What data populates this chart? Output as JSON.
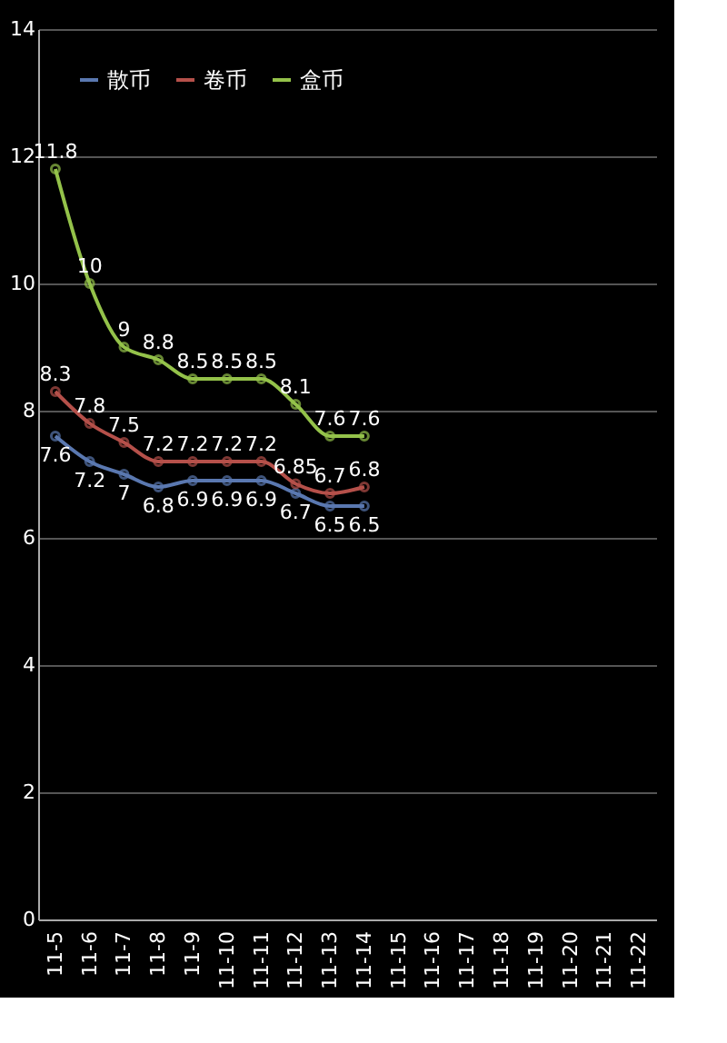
{
  "chart_data": {
    "type": "line",
    "categories": [
      "11-5",
      "11-6",
      "11-7",
      "11-8",
      "11-9",
      "11-10",
      "11-11",
      "11-12",
      "11-13",
      "11-14",
      "11-15",
      "11-16",
      "11-17",
      "11-18",
      "11-19",
      "11-20",
      "11-21",
      "11-22"
    ],
    "series": [
      {
        "name": "散币",
        "color": "#5a78b0",
        "values": [
          7.6,
          7.2,
          7,
          6.8,
          6.9,
          6.9,
          6.9,
          6.7,
          6.5,
          6.5,
          null,
          null,
          null,
          null,
          null,
          null,
          null,
          null
        ]
      },
      {
        "name": "卷币",
        "color": "#b5504a",
        "values": [
          8.3,
          7.8,
          7.5,
          7.2,
          7.2,
          7.2,
          7.2,
          6.85,
          6.7,
          6.8,
          null,
          null,
          null,
          null,
          null,
          null,
          null,
          null
        ]
      },
      {
        "name": "盒币",
        "color": "#94c24a",
        "values": [
          11.8,
          10,
          9,
          8.8,
          8.5,
          8.5,
          8.5,
          8.1,
          7.6,
          7.6,
          null,
          null,
          null,
          null,
          null,
          null,
          null,
          null
        ]
      }
    ],
    "ylim": [
      0,
      14
    ],
    "yticks": [
      0,
      2,
      4,
      6,
      8,
      10,
      12,
      14
    ],
    "grid": "y",
    "legend": "top left",
    "marker": "circle",
    "line_style": "solid",
    "data_labels": true
  }
}
